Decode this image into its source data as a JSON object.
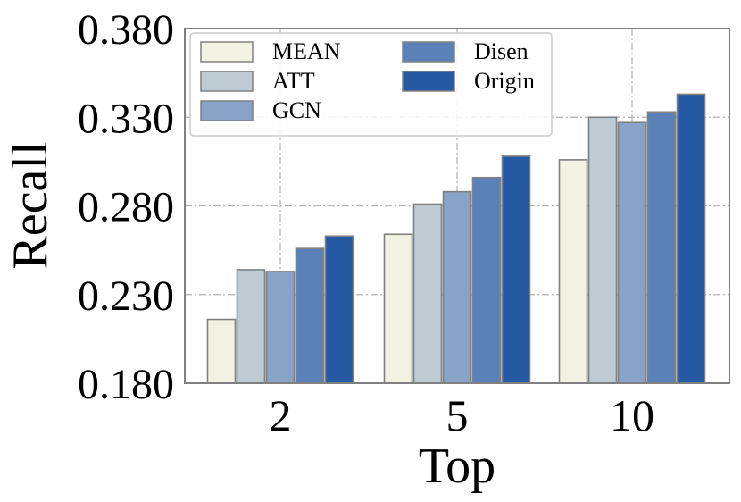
{
  "chart_data": {
    "type": "bar",
    "xlabel": "Top",
    "ylabel": "Recall",
    "categories": [
      "2",
      "5",
      "10"
    ],
    "ylim": [
      0.18,
      0.38
    ],
    "yticks": [
      "0.180",
      "0.230",
      "0.280",
      "0.330",
      "0.380"
    ],
    "grid": true,
    "legend_position": "top-left",
    "series": [
      {
        "name": "MEAN",
        "color": "#f2f2e2",
        "values": [
          0.216,
          0.264,
          0.306
        ]
      },
      {
        "name": "ATT",
        "color": "#bfcbd2",
        "values": [
          0.244,
          0.281,
          0.33
        ]
      },
      {
        "name": "GCN",
        "color": "#89a3c8",
        "values": [
          0.243,
          0.288,
          0.327
        ]
      },
      {
        "name": "Disen",
        "color": "#5a82b8",
        "values": [
          0.256,
          0.296,
          0.333
        ]
      },
      {
        "name": "Origin",
        "color": "#2559a4",
        "values": [
          0.263,
          0.308,
          0.343
        ]
      }
    ]
  }
}
